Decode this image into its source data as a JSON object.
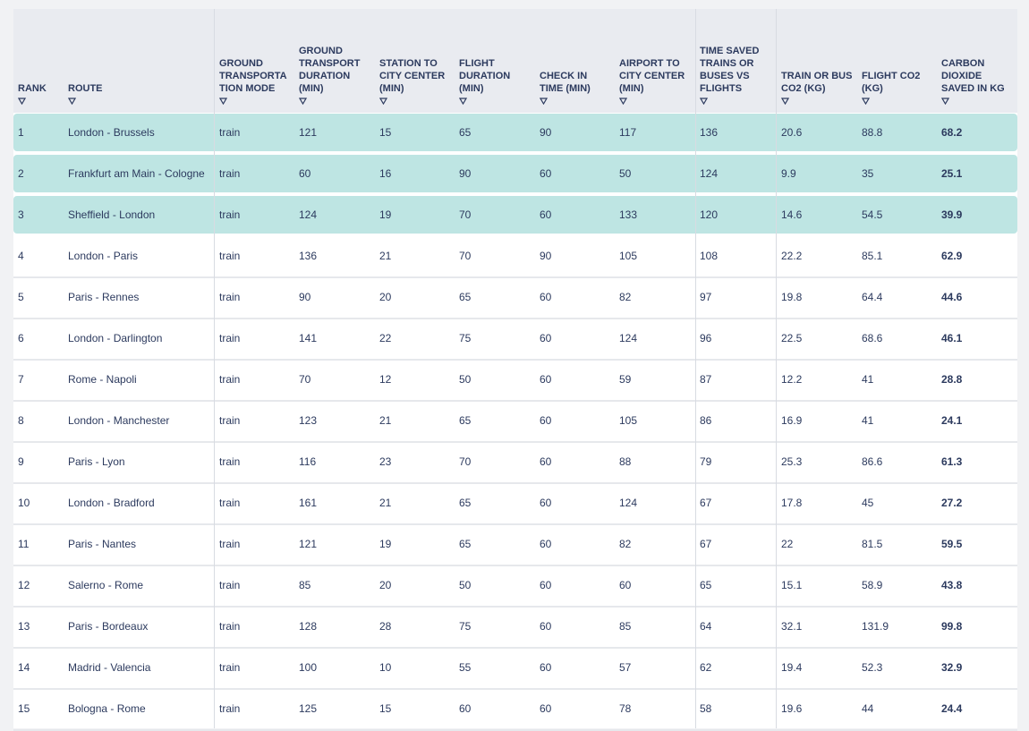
{
  "table": {
    "headers": [
      "RANK",
      "ROUTE",
      "GROUND TRANSPORTATION MODE",
      "GROUND TRANSPORT DURATION (MIN)",
      "STATION TO CITY CENTER (MIN)",
      "FLIGHT DURATION (MIN)",
      "CHECK IN TIME (MIN)",
      "AIRPORT TO CITY CENTER (MIN)",
      "TIME SAVED TRAINS OR BUSES VS FLIGHTS",
      "TRAIN OR BUS CO2 (KG)",
      "FLIGHT CO2 (KG)",
      "CARBON DIOXIDE SAVED IN KG"
    ],
    "rows": [
      [
        "1",
        "London - Brussels",
        "train",
        "121",
        "15",
        "65",
        "90",
        "117",
        "136",
        "20.6",
        "88.8",
        "68.2"
      ],
      [
        "2",
        "Frankfurt am Main - Cologne",
        "train",
        "60",
        "16",
        "90",
        "60",
        "50",
        "124",
        "9.9",
        "35",
        "25.1"
      ],
      [
        "3",
        "Sheffield - London",
        "train",
        "124",
        "19",
        "70",
        "60",
        "133",
        "120",
        "14.6",
        "54.5",
        "39.9"
      ],
      [
        "4",
        "London - Paris",
        "train",
        "136",
        "21",
        "70",
        "90",
        "105",
        "108",
        "22.2",
        "85.1",
        "62.9"
      ],
      [
        "5",
        "Paris - Rennes",
        "train",
        "90",
        "20",
        "65",
        "60",
        "82",
        "97",
        "19.8",
        "64.4",
        "44.6"
      ],
      [
        "6",
        "London - Darlington",
        "train",
        "141",
        "22",
        "75",
        "60",
        "124",
        "96",
        "22.5",
        "68.6",
        "46.1"
      ],
      [
        "7",
        "Rome - Napoli",
        "train",
        "70",
        "12",
        "50",
        "60",
        "59",
        "87",
        "12.2",
        "41",
        "28.8"
      ],
      [
        "8",
        "London - Manchester",
        "train",
        "123",
        "21",
        "65",
        "60",
        "105",
        "86",
        "16.9",
        "41",
        "24.1"
      ],
      [
        "9",
        "Paris - Lyon",
        "train",
        "116",
        "23",
        "70",
        "60",
        "88",
        "79",
        "25.3",
        "86.6",
        "61.3"
      ],
      [
        "10",
        "London - Bradford",
        "train",
        "161",
        "21",
        "65",
        "60",
        "124",
        "67",
        "17.8",
        "45",
        "27.2"
      ],
      [
        "11",
        "Paris - Nantes",
        "train",
        "121",
        "19",
        "65",
        "60",
        "82",
        "67",
        "22",
        "81.5",
        "59.5"
      ],
      [
        "12",
        "Salerno - Rome",
        "train",
        "85",
        "20",
        "50",
        "60",
        "60",
        "65",
        "15.1",
        "58.9",
        "43.8"
      ],
      [
        "13",
        "Paris - Bordeaux",
        "train",
        "128",
        "28",
        "75",
        "60",
        "85",
        "64",
        "32.1",
        "131.9",
        "99.8"
      ],
      [
        "14",
        "Madrid - Valencia",
        "train",
        "100",
        "10",
        "55",
        "60",
        "57",
        "62",
        "19.4",
        "52.3",
        "32.9"
      ],
      [
        "15",
        "Bologna - Rome",
        "train",
        "125",
        "15",
        "60",
        "60",
        "78",
        "58",
        "19.6",
        "44",
        "24.4"
      ]
    ]
  }
}
